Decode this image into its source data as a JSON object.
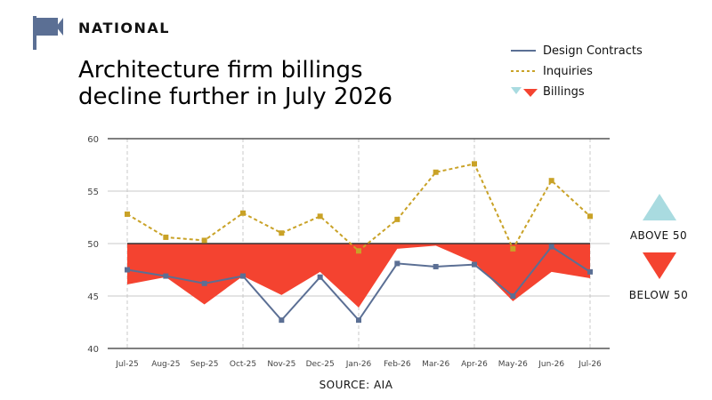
{
  "header": {
    "section_label": "NATIONAL",
    "headline_line1": "Architecture firm billings",
    "headline_line2": "decline further in July 2026"
  },
  "key": {
    "above_label": "ABOVE 50",
    "below_label": "BELOW 50"
  },
  "source": "SOURCE: AIA",
  "colors": {
    "design_contracts": "#5b6f94",
    "inquiries": "#c9a227",
    "billings_below": "#f44330",
    "billings_above": "#a9dbe0",
    "flag": "#5b6f94",
    "axis": "#555555",
    "grid": "#c8c8c8"
  },
  "chart_data": {
    "type": "line",
    "categories": [
      "Jul-25",
      "Aug-25",
      "Sep-25",
      "Oct-25",
      "Nov-25",
      "Dec-25",
      "Jan-26",
      "Feb-26",
      "Mar-26",
      "Apr-26",
      "May-26",
      "Jun-26",
      "Jul-26"
    ],
    "ylim": [
      40,
      60
    ],
    "yticks": [
      40,
      45,
      50,
      55,
      60
    ],
    "baseline": 50,
    "series": [
      {
        "name": "Design Contracts",
        "style": "solid-line-square-markers",
        "values": [
          47.5,
          46.9,
          46.2,
          46.9,
          42.7,
          46.8,
          42.7,
          48.1,
          47.8,
          48.0,
          45.0,
          49.7,
          47.3
        ]
      },
      {
        "name": "Inquiries",
        "style": "dashed-line-square-markers",
        "values": [
          52.8,
          50.6,
          50.3,
          52.9,
          51.0,
          52.6,
          49.3,
          52.3,
          56.8,
          57.6,
          49.5,
          56.0,
          52.6
        ]
      },
      {
        "name": "Billings",
        "style": "area-relative-to-50",
        "values": [
          46.1,
          46.8,
          44.2,
          46.9,
          45.1,
          47.3,
          43.9,
          49.5,
          49.8,
          48.2,
          44.5,
          47.3,
          46.7
        ]
      }
    ]
  }
}
